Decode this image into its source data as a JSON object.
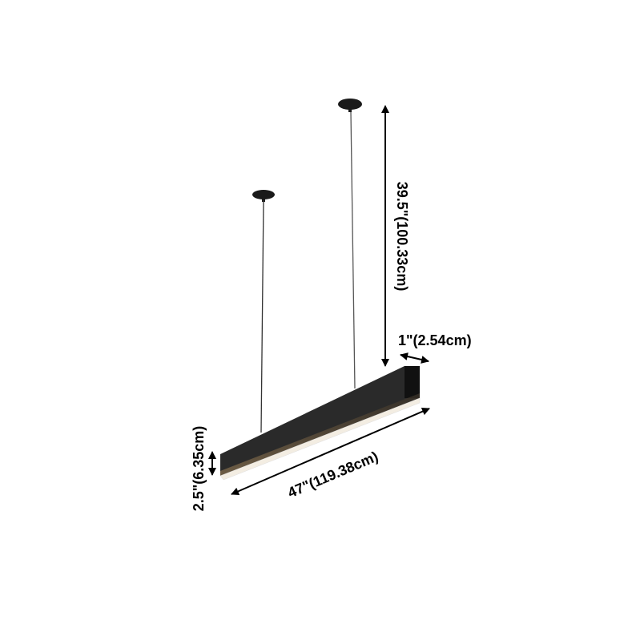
{
  "dimensions": {
    "drop_length": "39.5\"(100.33cm)",
    "width": "1\"(2.54cm)",
    "length": "47\"(119.38cm)",
    "height": "2.5\"(6.35cm)"
  },
  "colors": {
    "fixture": "#2a2a2a",
    "light_strip": "#f3ede2",
    "arrow": "#000000"
  }
}
